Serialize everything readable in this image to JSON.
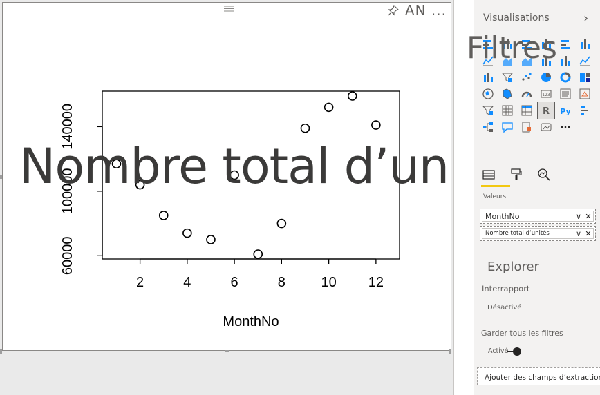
{
  "visual": {
    "menu_label": "AN ...",
    "overlay_title": "Nombre total d’unités"
  },
  "chart_data": {
    "type": "scatter",
    "xlabel": "MonthNo",
    "ylabel": "",
    "x_ticks": [
      "2",
      "4",
      "6",
      "8",
      "10",
      "12"
    ],
    "y_ticks": [
      "60000",
      "100000",
      "140000"
    ],
    "xlim": [
      0.4,
      13.0
    ],
    "ylim": [
      58000,
      162000
    ],
    "points": [
      {
        "x": 1,
        "y": 117000
      },
      {
        "x": 2,
        "y": 104000
      },
      {
        "x": 3,
        "y": 85000
      },
      {
        "x": 4,
        "y": 74000
      },
      {
        "x": 5,
        "y": 70000
      },
      {
        "x": 6,
        "y": 110000
      },
      {
        "x": 7,
        "y": 61000
      },
      {
        "x": 8,
        "y": 80000
      },
      {
        "x": 9,
        "y": 139000
      },
      {
        "x": 10,
        "y": 152000
      },
      {
        "x": 11,
        "y": 159000
      },
      {
        "x": 12,
        "y": 141000
      }
    ]
  },
  "pane": {
    "visualisations_title": "Visualisations",
    "collapse_glyph": "›",
    "filters_overlay": "Filtres",
    "values_label": "Valeurs",
    "wells": [
      {
        "label": "MonthNo"
      },
      {
        "label": "Nombre total d’unités"
      }
    ],
    "drill_title": "Explorer",
    "cross_report_label": "Interrapport",
    "cross_report_state": "Désactivé",
    "keep_filters_label": "Garder tous les filtres",
    "keep_filters_state": "Activé",
    "drill_add_placeholder": "Ajouter des champs d’extraction ici",
    "more_glyph": "⋯",
    "chevron_glyph": "∨",
    "remove_glyph": "✕"
  },
  "colors": {
    "accent": "#f2c811",
    "pane_bg": "#f3f2f1",
    "text": "#252423"
  },
  "viz_icons": [
    "stacked-bar-icon",
    "stacked-column-icon",
    "clustered-bar-icon",
    "clustered-column-icon",
    "100-bar-icon",
    "100-column-icon",
    "line-chart-icon",
    "area-chart-icon",
    "stacked-area-icon",
    "line-column-icon",
    "line-clustered-icon",
    "ribbon-chart-icon",
    "waterfall-icon",
    "funnel-icon",
    "scatter-icon",
    "pie-icon",
    "donut-icon",
    "treemap-icon",
    "map-icon",
    "filled-map-icon",
    "gauge-icon",
    "card-icon",
    "multirow-card-icon",
    "kpi-icon",
    "slicer-icon",
    "table-icon",
    "matrix-icon",
    "r-visual-icon",
    "python-visual-icon",
    "key-influencers-icon",
    "decomposition-tree-icon",
    "qa-icon",
    "smart-narrative-icon",
    "paginated-report-icon",
    "more-visuals-icon"
  ]
}
